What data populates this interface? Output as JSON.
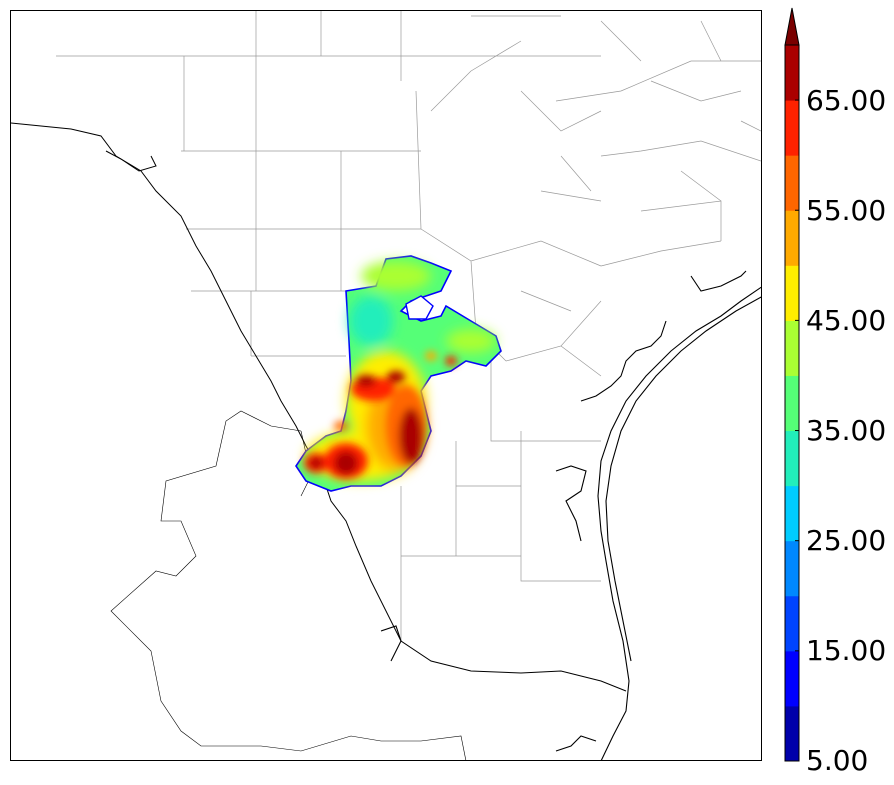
{
  "colorbar": {
    "tick_labels": [
      "5.00",
      "15.00",
      "25.00",
      "35.00",
      "45.00",
      "55.00",
      "65.00"
    ],
    "levels": [
      5,
      10,
      15,
      20,
      25,
      30,
      35,
      40,
      45,
      50,
      55,
      60,
      65,
      70
    ],
    "colors": [
      "#0000aa",
      "#0000ff",
      "#0044ff",
      "#0088ff",
      "#00ccff",
      "#22eebb",
      "#55ff77",
      "#aaff33",
      "#ffee00",
      "#ffaa00",
      "#ff6600",
      "#ff2200",
      "#aa0000"
    ],
    "extend": "max",
    "extend_color": "#7a0000"
  },
  "map": {
    "outline_color": "#000000",
    "county_line_color": "#9a9a9a",
    "field_outline_color": "#0000ff"
  }
}
